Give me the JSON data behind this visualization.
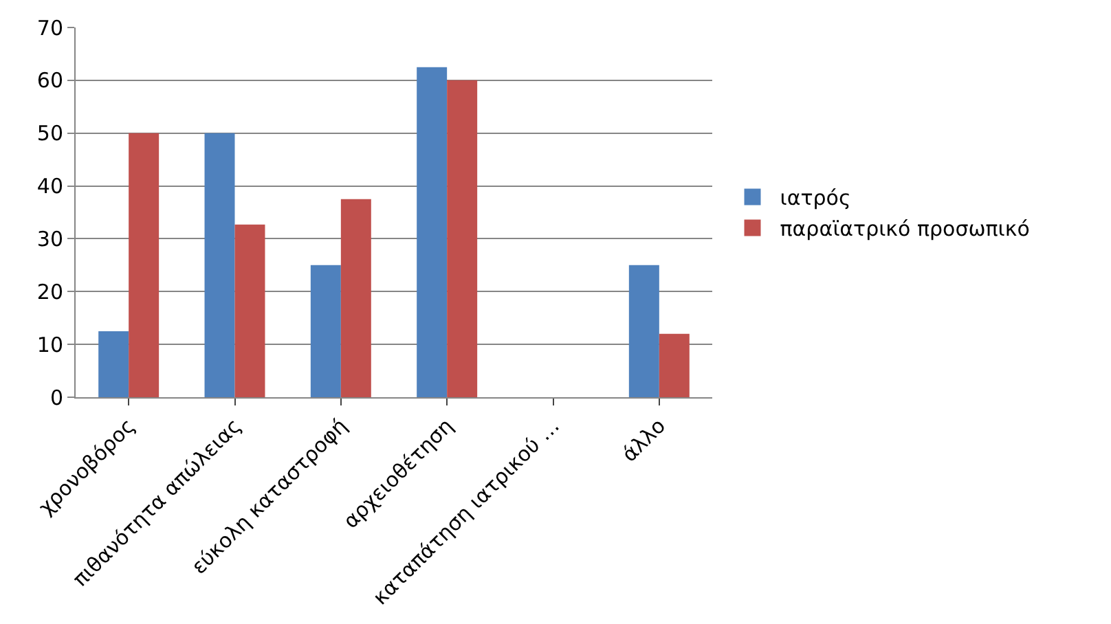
{
  "chart_data": {
    "type": "bar",
    "categories": [
      "χρονοβόρος",
      "πιθανότητα απώλειας",
      "εύκολη καταστροφή",
      "αρχειοθέτηση",
      "καταπάτηση ιατρικού …",
      "άλλο"
    ],
    "series": [
      {
        "name": "ιατρός",
        "color": "#4f81bd",
        "values": [
          12.5,
          50,
          25,
          62.5,
          0,
          25
        ]
      },
      {
        "name": "παραϊατρικό προσωπικό",
        "color": "#c0504d",
        "values": [
          50,
          32.7,
          37.5,
          60,
          0,
          12
        ]
      }
    ],
    "ylim": [
      0,
      70
    ],
    "yticks": [
      0,
      10,
      20,
      30,
      40,
      50,
      60,
      70
    ],
    "grid": "y",
    "legend": "right"
  }
}
